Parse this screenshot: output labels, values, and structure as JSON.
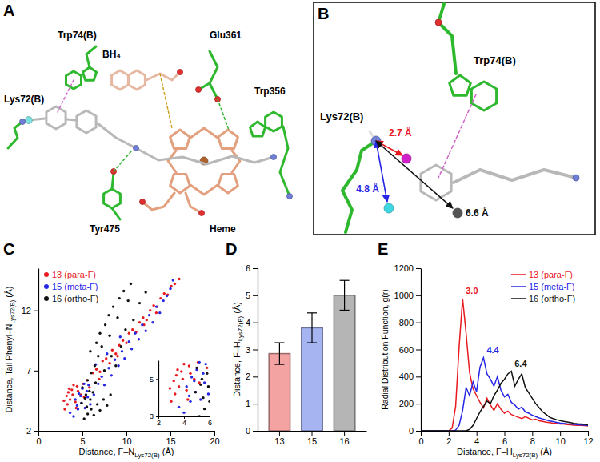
{
  "structures": [
    {
      "panel": "A",
      "labels": [
        "Trp74(B)",
        "BH₄",
        "Glu361",
        "Trp356",
        "Lys72(B)",
        "Heme",
        "Tyr475"
      ]
    },
    {
      "panel": "B",
      "labels": [
        "Lys72(B)",
        "Trp74(B)"
      ],
      "distances": [
        "2.7 Å",
        "4.8 Å",
        "6.6 Å"
      ]
    }
  ],
  "chart_data": [
    {
      "panel": "C",
      "type": "scatter",
      "xlabel": [
        "Distance, F–N",
        "Lys72(B)",
        " (Å)"
      ],
      "ylabel": [
        "Distance, Tail Phenyl–N",
        "Lys72(B)",
        " (Å)"
      ],
      "xlim": [
        0,
        20
      ],
      "xticks": [
        0,
        5,
        10,
        15,
        20
      ],
      "ylim": [
        2,
        15.5
      ],
      "yticks": [
        2,
        7,
        12
      ],
      "legend": "upper left",
      "series": [
        {
          "name": "13 (para-F)",
          "color": "#e8191f",
          "x": [
            3.0,
            3.3,
            3.6,
            3.9,
            4.2,
            4.5,
            3.5,
            4.0,
            4.8,
            5.1,
            5.5,
            5.8,
            6.2,
            6.6,
            7.0,
            7.3,
            7.7,
            8.1,
            8.4,
            8.8,
            9.2,
            9.6,
            10.0,
            10.3,
            10.7,
            11.1,
            11.5,
            11.9,
            12.3,
            12.7,
            13.1,
            13.5,
            13.9,
            14.3,
            14.7,
            15.1,
            15.5,
            16.0,
            4.3,
            5.2,
            6.9,
            9.0,
            12.0,
            13.4,
            3.2,
            3.8,
            4.4,
            2.9,
            3.4
          ],
          "values": [
            3.8,
            4.2,
            4.6,
            5.0,
            4.4,
            5.3,
            5.5,
            5.8,
            5.0,
            5.9,
            6.2,
            5.6,
            6.8,
            7.1,
            6.9,
            7.8,
            8.0,
            7.6,
            8.7,
            8.4,
            9.1,
            9.5,
            9.3,
            10.1,
            10.4,
            10.2,
            11.0,
            11.4,
            11.2,
            12.0,
            12.4,
            12.3,
            13.0,
            13.4,
            13.3,
            14.0,
            14.2,
            14.6,
            3.9,
            4.8,
            6.3,
            8.2,
            10.8,
            11.8,
            4.9,
            5.4,
            5.7,
            4.5,
            5.2
          ]
        },
        {
          "name": "15 (meta-F)",
          "color": "#2626e6",
          "x": [
            4.0,
            4.5,
            4.9,
            5.3,
            5.6,
            4.2,
            4.6,
            5.0,
            5.5,
            5.9,
            5.7,
            6.3,
            6.8,
            7.2,
            7.5,
            8.0,
            8.3,
            8.7,
            9.1,
            9.5,
            9.8,
            10.3,
            10.6,
            11.0,
            11.4,
            11.8,
            12.2,
            12.6,
            13.0,
            13.4,
            13.8,
            14.2,
            14.6,
            15.0,
            15.3,
            6.5,
            7.8,
            9.3,
            3.6,
            4.8,
            5.2,
            4.4
          ],
          "values": [
            3.2,
            3.8,
            4.3,
            3.9,
            4.8,
            4.6,
            5.1,
            5.5,
            5.3,
            4.2,
            5.8,
            5.0,
            5.9,
            6.5,
            5.8,
            7.2,
            6.6,
            7.9,
            7.4,
            8.6,
            8.0,
            9.4,
            8.8,
            10.1,
            9.6,
            10.8,
            10.3,
            11.6,
            11.0,
            12.3,
            11.8,
            12.8,
            13.2,
            13.8,
            14.5,
            7.5,
            8.4,
            9.8,
            3.5,
            4.9,
            5.9,
            4.1
          ]
        },
        {
          "name": "16 (ortho-F)",
          "color": "#111111",
          "x": [
            5.2,
            5.6,
            6.0,
            6.3,
            6.7,
            7.0,
            7.4,
            7.8,
            8.2,
            5.5,
            5.9,
            6.2,
            5.8,
            5.4,
            4.9,
            5.0,
            5.6,
            6.0,
            6.4,
            6.8,
            5.9,
            6.6,
            7.2,
            7.0,
            7.6,
            8.1,
            8.0,
            8.5,
            9.0,
            9.2,
            9.7,
            10.2,
            10.5,
            7.5,
            8.3,
            8.8,
            9.4,
            9.9,
            10.8,
            11.5,
            12.2,
            6.5,
            5.3
          ],
          "values": [
            3.0,
            3.4,
            3.8,
            3.3,
            4.2,
            3.7,
            4.6,
            4.1,
            5.0,
            4.0,
            4.6,
            5.2,
            5.3,
            5.0,
            4.3,
            5.6,
            6.2,
            6.8,
            7.4,
            8.2,
            8.6,
            9.3,
            9.0,
            10.1,
            10.8,
            9.9,
            11.6,
            12.3,
            11.4,
            13.0,
            13.6,
            12.8,
            14.2,
            7.0,
            8.2,
            7.4,
            9.0,
            10.4,
            11.2,
            12.6,
            13.5,
            6.0,
            4.7
          ]
        }
      ],
      "inset": {
        "xlim": [
          2,
          6
        ],
        "ylim": [
          3,
          6
        ],
        "xticks": [
          2,
          4,
          6
        ],
        "yticks": [
          3,
          5
        ]
      }
    },
    {
      "panel": "D",
      "type": "bar",
      "categories": [
        "13",
        "15",
        "16"
      ],
      "values": [
        2.85,
        3.8,
        5.0
      ],
      "errors": [
        0.4,
        0.55,
        0.55
      ],
      "colors": [
        "#f4a3a3",
        "#a7b4f2",
        "#b5b5b5"
      ],
      "ylim": [
        0,
        6
      ],
      "yticks": [
        0,
        1,
        2,
        3,
        4,
        5,
        6
      ],
      "ylabel": [
        "Distance, F–H",
        "Lys72(B)",
        " (Å)"
      ]
    },
    {
      "panel": "E",
      "type": "line",
      "x": [
        0,
        0.25,
        0.5,
        0.75,
        1,
        1.25,
        1.5,
        1.75,
        2,
        2.25,
        2.5,
        2.75,
        3,
        3.25,
        3.5,
        3.75,
        4,
        4.25,
        4.5,
        4.75,
        5,
        5.25,
        5.5,
        5.75,
        6,
        6.25,
        6.5,
        6.75,
        7,
        7.25,
        7.5,
        7.75,
        8,
        8.25,
        8.5,
        8.75,
        9,
        9.25,
        9.5,
        9.75,
        10,
        10.25,
        10.5,
        10.75,
        11,
        11.25,
        11.5,
        11.75,
        12
      ],
      "xlim": [
        0,
        12
      ],
      "xticks": [
        0,
        2,
        4,
        6,
        8,
        10,
        12
      ],
      "ylim": [
        0,
        1200
      ],
      "yticks": [
        0,
        200,
        400,
        600,
        800,
        1000,
        1200
      ],
      "xlabel": [
        "Distance, F–H",
        "Lys72(B)",
        " (Å)"
      ],
      "ylabel": "Radial Distribution Function, g(r)",
      "legend": "upper right",
      "series": [
        {
          "name": "13 (para-F)",
          "color": "#e8191f",
          "values": [
            0,
            0,
            0,
            0,
            0,
            0,
            0,
            0,
            0,
            20,
            180,
            620,
            975,
            720,
            430,
            310,
            260,
            210,
            170,
            240,
            190,
            150,
            200,
            160,
            130,
            145,
            120,
            110,
            100,
            90,
            105,
            92,
            80,
            85,
            74,
            70,
            64,
            60,
            56,
            55,
            50,
            50,
            46,
            45,
            42,
            40,
            40,
            38,
            36
          ]
        },
        {
          "name": "15 (meta-F)",
          "color": "#2626e6",
          "values": [
            0,
            0,
            0,
            0,
            0,
            0,
            0,
            0,
            0,
            0,
            5,
            40,
            150,
            320,
            260,
            360,
            290,
            470,
            540,
            420,
            380,
            330,
            400,
            300,
            250,
            270,
            210,
            190,
            160,
            175,
            140,
            130,
            115,
            105,
            95,
            88,
            80,
            72,
            68,
            62,
            58,
            55,
            52,
            50,
            48,
            45,
            44,
            42,
            40
          ]
        },
        {
          "name": "16 (ortho-F)",
          "color": "#111111",
          "values": [
            0,
            0,
            0,
            0,
            0,
            0,
            0,
            0,
            0,
            0,
            0,
            0,
            0,
            0,
            10,
            40,
            90,
            140,
            180,
            220,
            200,
            260,
            300,
            350,
            380,
            420,
            440,
            330,
            380,
            420,
            320,
            280,
            240,
            200,
            170,
            140,
            120,
            100,
            90,
            82,
            75,
            70,
            65,
            60,
            55,
            52,
            50,
            48,
            45
          ]
        }
      ],
      "annotations": [
        {
          "text": "3.0",
          "series": 0
        },
        {
          "text": "4.4",
          "series": 1
        },
        {
          "text": "6.4",
          "series": 2
        }
      ]
    }
  ]
}
